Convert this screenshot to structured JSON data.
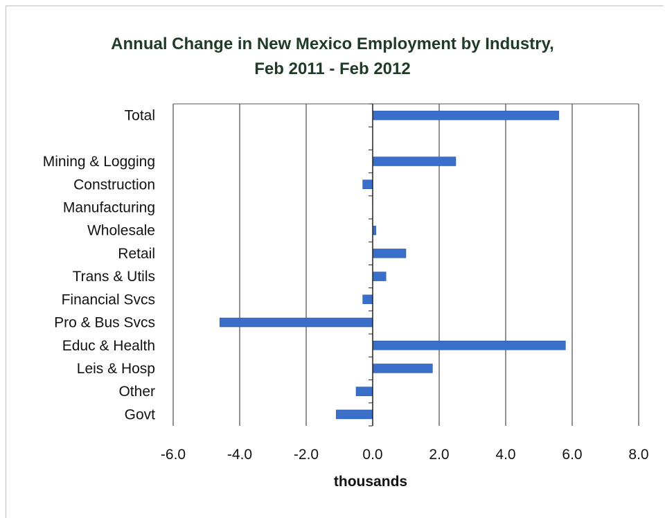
{
  "title_line_1": "Annual Change in New Mexico Employment by Industry,",
  "title_line_2": "Feb 2011 - Feb 2012",
  "chart_data": {
    "type": "bar",
    "orientation": "horizontal",
    "title": "Annual Change in New Mexico Employment by Industry, Feb 2011 - Feb 2012",
    "xlabel": "thousands",
    "ylabel": "",
    "xlim": [
      -6.0,
      8.0
    ],
    "xticks": [
      "-6.0",
      "-4.0",
      "-2.0",
      "0.0",
      "2.0",
      "4.0",
      "6.0",
      "8.0"
    ],
    "grid": true,
    "bar_color": "#3a6fc9",
    "categories": [
      "Total",
      "",
      "Mining & Logging",
      "Construction",
      "Manufacturing",
      "Wholesale",
      "Retail",
      "Trans & Utils",
      "Financial Svcs",
      "Pro & Bus Svcs",
      "Educ & Health",
      "Leis & Hosp",
      "Other",
      "Govt"
    ],
    "values": [
      5.6,
      null,
      2.5,
      -0.3,
      0.0,
      0.1,
      1.0,
      0.4,
      -0.3,
      -4.6,
      5.8,
      1.8,
      -0.5,
      -1.1
    ]
  }
}
